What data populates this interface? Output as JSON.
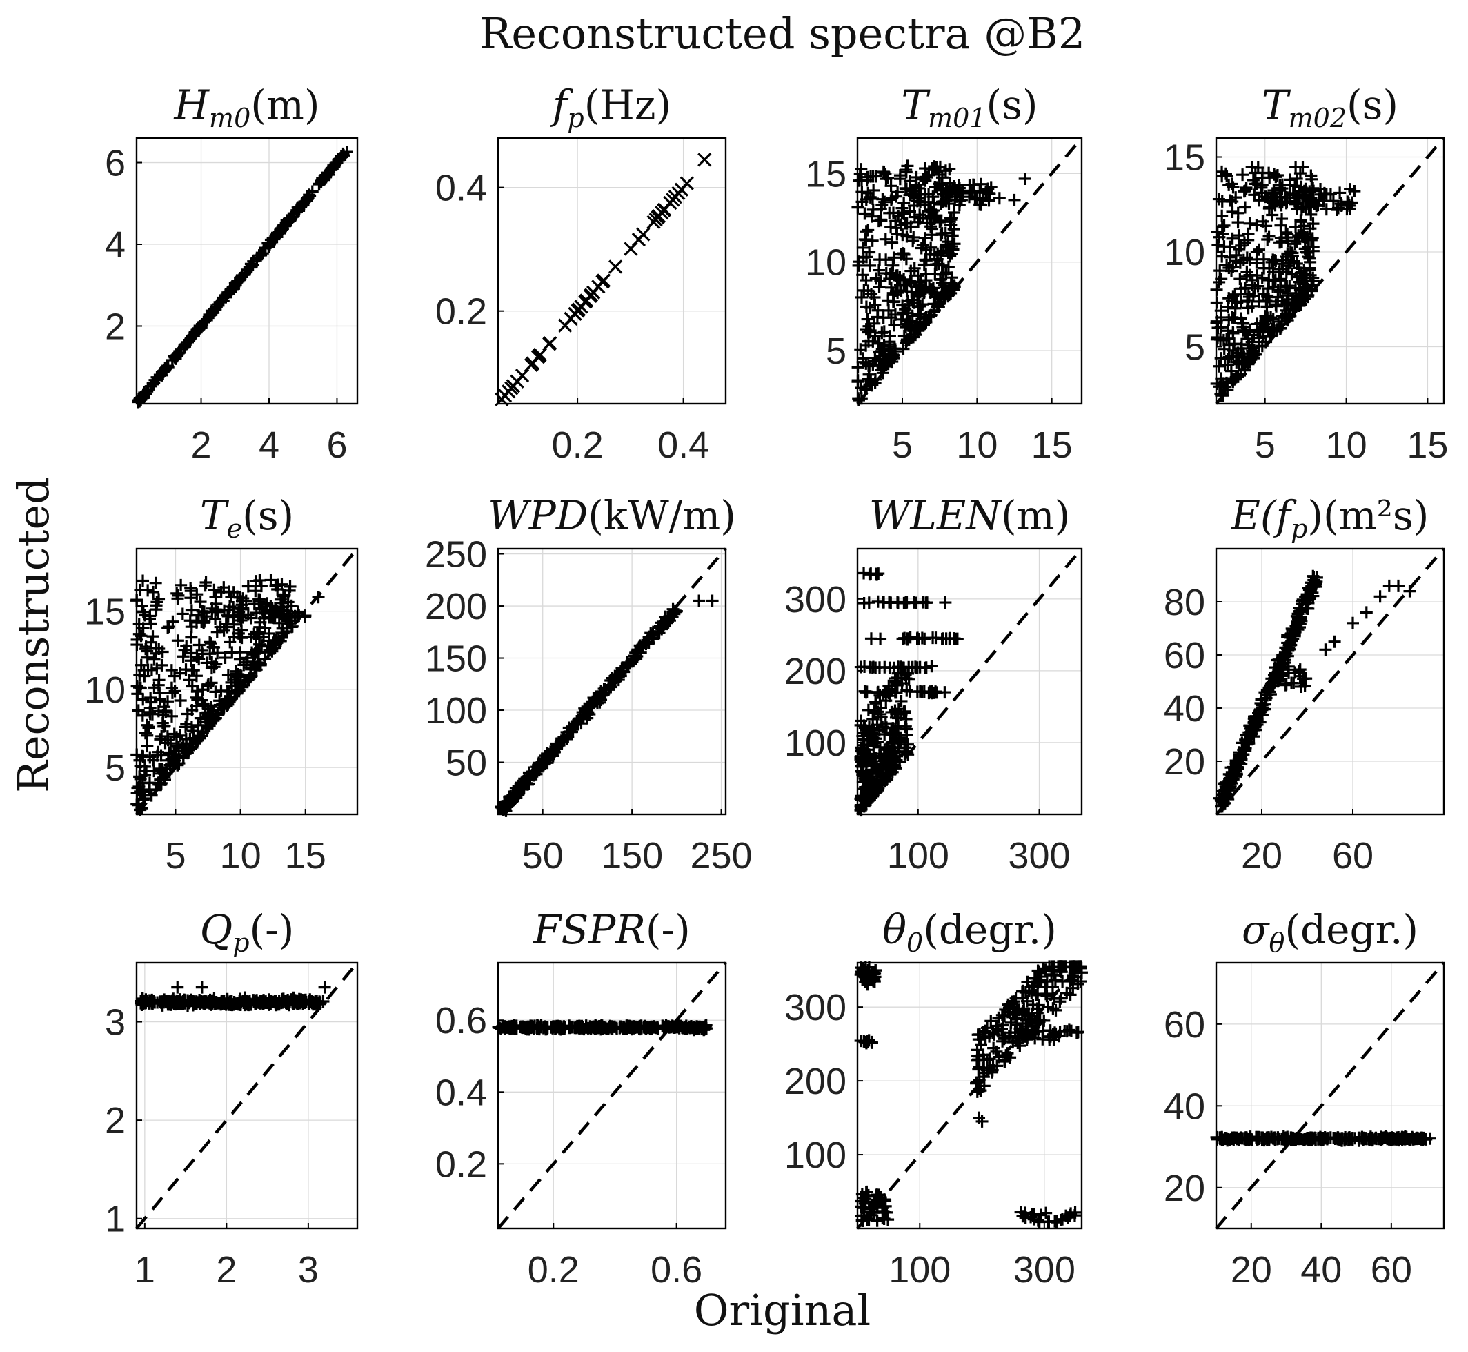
{
  "figure": {
    "title": "Reconstructed spectra @B2",
    "xlabel": "Original",
    "ylabel": "Reconstructed"
  },
  "colors": {
    "ink": "#000000",
    "grid": "#d9d9d9",
    "background": "#ffffff"
  },
  "chart_data": [
    {
      "type": "scatter",
      "title_main": "H",
      "title_sub": "m0",
      "title_unit": "(m)",
      "xlim": [
        0.1,
        6.6
      ],
      "ylim": [
        0.1,
        6.6
      ],
      "xticks": [
        2,
        4,
        6
      ],
      "yticks": [
        2,
        4,
        6
      ],
      "identity_line": false,
      "marker": "+",
      "series": [
        {
          "name": "band",
          "x": [
            0.1,
            6.3
          ],
          "y": [
            0.1,
            6.3
          ],
          "spread": 0.08
        }
      ]
    },
    {
      "type": "scatter",
      "title_main": "f",
      "title_sub": "p",
      "title_unit": "(Hz)",
      "xlim": [
        0.05,
        0.48
      ],
      "ylim": [
        0.05,
        0.48
      ],
      "xticks": [
        0.2,
        0.4
      ],
      "yticks": [
        0.2,
        0.4
      ],
      "identity_line": false,
      "marker": "x",
      "series": [
        {
          "name": "points",
          "x": [
            0.05,
            0.44
          ],
          "y": [
            0.05,
            0.44
          ],
          "spread": 0.004
        }
      ]
    },
    {
      "type": "scatter",
      "title_main": "T",
      "title_sub": "m01",
      "title_unit": "(s)",
      "xlim": [
        2,
        17
      ],
      "ylim": [
        2,
        17
      ],
      "xticks": [
        5,
        10,
        15
      ],
      "yticks": [
        5,
        10,
        15
      ],
      "identity_line": true,
      "marker": "+",
      "series": [
        {
          "name": "bulk",
          "x": [
            2,
            8
          ],
          "y": [
            2,
            15
          ],
          "note": "scatter above diagonal, cap near 15.5"
        },
        {
          "name": "outliers",
          "x": [
            11,
            13.5
          ],
          "y": [
            13.5,
            14.5
          ]
        }
      ]
    },
    {
      "type": "scatter",
      "title_main": "T",
      "title_sub": "m02",
      "title_unit": "(s)",
      "xlim": [
        2,
        16
      ],
      "ylim": [
        2,
        16
      ],
      "xticks": [
        5,
        10,
        15
      ],
      "yticks": [
        5,
        10,
        15
      ],
      "identity_line": true,
      "marker": "+",
      "series": [
        {
          "name": "bulk",
          "x": [
            2,
            8
          ],
          "y": [
            2,
            15
          ]
        },
        {
          "name": "outliers",
          "x": [
            9.5,
            10.5
          ],
          "y": [
            12.5,
            13.5
          ]
        }
      ]
    },
    {
      "type": "scatter",
      "title_main": "T",
      "title_sub": "e",
      "title_unit": "(s)",
      "xlim": [
        2,
        19
      ],
      "ylim": [
        2,
        19
      ],
      "xticks": [
        5,
        10,
        15
      ],
      "yticks": [
        5,
        10,
        15
      ],
      "identity_line": true,
      "marker": "+",
      "series": [
        {
          "name": "bulk",
          "x": [
            2,
            15
          ],
          "y": [
            2,
            18
          ]
        }
      ]
    },
    {
      "type": "scatter",
      "title_main": "WPD",
      "title_sub": "",
      "title_unit": "(kW/m)",
      "xlim": [
        0,
        255
      ],
      "ylim": [
        0,
        255
      ],
      "xticks": [
        50,
        150,
        250
      ],
      "yticks": [
        50,
        100,
        150,
        200,
        250
      ],
      "identity_line": true,
      "marker": "+",
      "series": [
        {
          "name": "band",
          "x": [
            0,
            210
          ],
          "y": [
            0,
            205
          ]
        }
      ]
    },
    {
      "type": "scatter",
      "title_main": "WLEN",
      "title_sub": "",
      "title_unit": "(m)",
      "xlim": [
        0,
        370
      ],
      "ylim": [
        0,
        370
      ],
      "xticks": [
        100,
        300
      ],
      "yticks": [
        100,
        200,
        300
      ],
      "identity_line": true,
      "marker": "+",
      "series": [
        {
          "name": "bulk",
          "x": [
            0,
            150
          ],
          "y": [
            0,
            340
          ]
        }
      ]
    },
    {
      "type": "scatter",
      "title_main": "E(f",
      "title_sub": "p",
      "title_unit": ")(m²s)",
      "xlim": [
        0,
        100
      ],
      "ylim": [
        0,
        100
      ],
      "xticks": [
        20,
        60
      ],
      "yticks": [
        20,
        40,
        60,
        80
      ],
      "identity_line": true,
      "marker": "+",
      "series": [
        {
          "name": "upper",
          "x": [
            0,
            45
          ],
          "y": [
            0,
            92
          ]
        },
        {
          "name": "lower",
          "x": [
            30,
            80
          ],
          "y": [
            50,
            87
          ]
        }
      ]
    },
    {
      "type": "scatter",
      "title_main": "Q",
      "title_sub": "p",
      "title_unit": "(-)",
      "xlim": [
        0.9,
        3.6
      ],
      "ylim": [
        0.9,
        3.6
      ],
      "xticks": [
        1,
        2,
        3
      ],
      "yticks": [
        1,
        2,
        3
      ],
      "identity_line": true,
      "marker": "+",
      "series": [
        {
          "name": "flat",
          "x": [
            0.9,
            3.2
          ],
          "y": [
            3.2,
            3.2
          ]
        }
      ]
    },
    {
      "type": "scatter",
      "title_main": "FSPR",
      "title_sub": "",
      "title_unit": "(-)",
      "xlim": [
        0.02,
        0.76
      ],
      "ylim": [
        0.02,
        0.76
      ],
      "xticks": [
        0.2,
        0.6
      ],
      "yticks": [
        0.2,
        0.4,
        0.6
      ],
      "identity_line": true,
      "marker": "+",
      "series": [
        {
          "name": "flat",
          "x": [
            0.02,
            0.7
          ],
          "y": [
            0.58,
            0.58
          ]
        }
      ]
    },
    {
      "type": "scatter",
      "title_main": "θ",
      "title_sub": "0",
      "title_unit": "(degr.)",
      "xlim": [
        0,
        360
      ],
      "ylim": [
        0,
        360
      ],
      "xticks": [
        100,
        300
      ],
      "yticks": [
        100,
        200,
        300
      ],
      "identity_line": true,
      "marker": "+",
      "series": [
        {
          "name": "clusters",
          "x": [
            0,
            360
          ],
          "y": [
            0,
            360
          ]
        }
      ]
    },
    {
      "type": "scatter",
      "title_main": "σ",
      "title_sub": "θ",
      "title_unit": "(degr.)",
      "xlim": [
        10,
        75
      ],
      "ylim": [
        10,
        75
      ],
      "xticks": [
        20,
        40,
        60
      ],
      "yticks": [
        20,
        40,
        60
      ],
      "identity_line": true,
      "marker": "+",
      "series": [
        {
          "name": "flat",
          "x": [
            10,
            70
          ],
          "y": [
            32,
            32
          ]
        }
      ]
    }
  ]
}
